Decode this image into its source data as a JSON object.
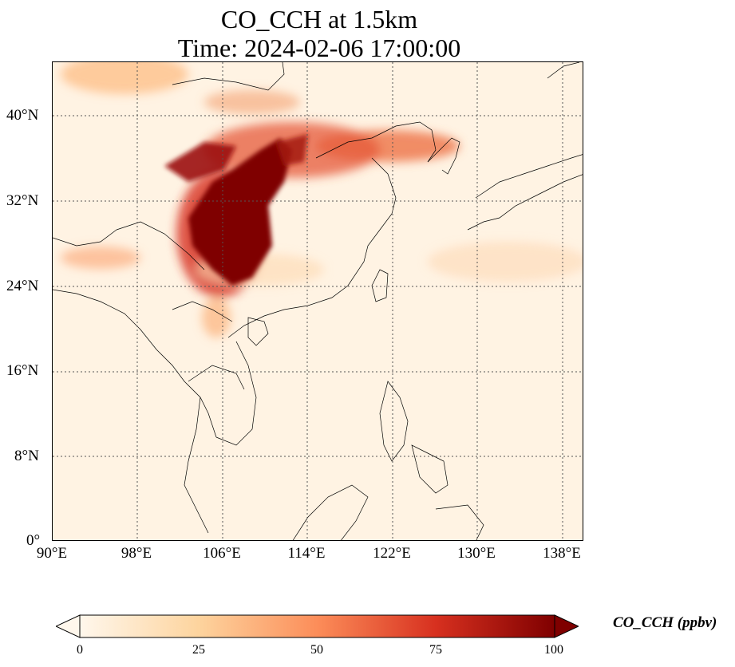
{
  "title": {
    "line1": "CO_CCH at 1.5km",
    "line2": "Time: 2024-02-06 17:00:00"
  },
  "map": {
    "lon_range": [
      90,
      140
    ],
    "lat_range": [
      0,
      45
    ],
    "lat_ticks": [
      "40°N",
      "32°N",
      "24°N",
      "16°N",
      "8°N",
      "0°"
    ],
    "lon_ticks": [
      "90°E",
      "98°E",
      "106°E",
      "114°E",
      "122°E",
      "130°E",
      "138°E"
    ],
    "gridlines": "dotted"
  },
  "colorbar": {
    "label": "CO_CCH (ppbv)",
    "ticks": [
      "0",
      "25",
      "50",
      "75",
      "100"
    ],
    "min": 0,
    "max": 100,
    "extend": "both",
    "colormap": "OrRd",
    "colors": [
      "#fff7ec",
      "#fdd49e",
      "#fc8d59",
      "#d7301f",
      "#7f0000"
    ]
  }
}
